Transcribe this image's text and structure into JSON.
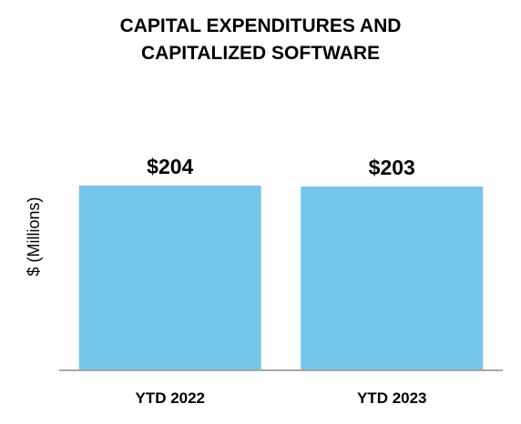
{
  "chart_data": {
    "type": "bar",
    "title_lines": [
      "CAPITAL EXPENDITURES AND",
      "CAPITALIZED SOFTWARE"
    ],
    "ylabel": "$ (Millions)",
    "xlabel": "",
    "categories": [
      "YTD 2022",
      "YTD 2023"
    ],
    "values": [
      204,
      203
    ],
    "data_labels": [
      "$204",
      "$203"
    ],
    "ylim": [
      0,
      204
    ],
    "grid": false,
    "legend": "none",
    "bar_color": "#73C5E9",
    "axis_color": "#A6A6A6"
  }
}
